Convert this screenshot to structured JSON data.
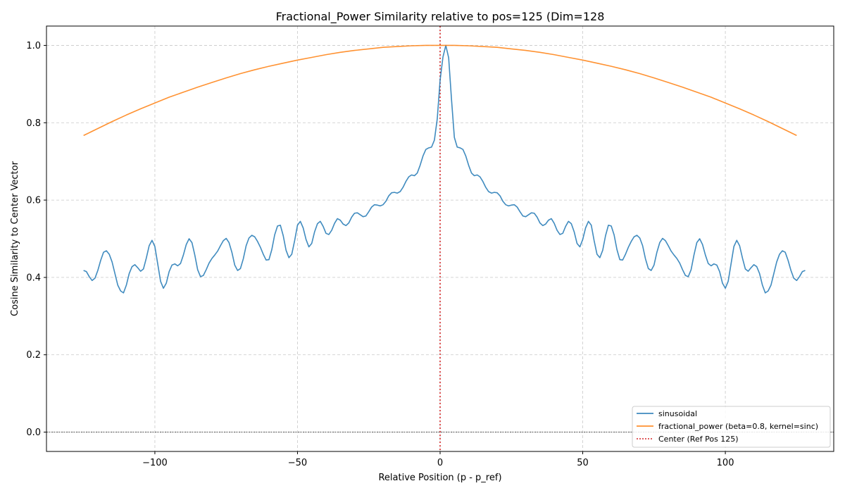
{
  "chart_data": {
    "type": "line",
    "title": "Fractional_Power Similarity relative to pos=125 (Dim=128",
    "xlabel": "Relative Position (p - p_ref)",
    "ylabel": "Cosine Similarity to Center Vector",
    "xlim": [
      -138,
      138
    ],
    "ylim": [
      -0.05,
      1.05
    ],
    "xticks": [
      -100,
      -50,
      0,
      50,
      100
    ],
    "xtick_labels": [
      "−100",
      "−50",
      "0",
      "50",
      "100"
    ],
    "yticks": [
      0.0,
      0.2,
      0.4,
      0.6,
      0.8,
      1.0
    ],
    "ytick_labels": [
      "0.0",
      "0.2",
      "0.4",
      "0.6",
      "0.8",
      "1.0"
    ],
    "grid": true,
    "legend_position": "bottom-right",
    "series": [
      {
        "name": "sinusoidal",
        "color": "#1f77b4",
        "points": [
          [
            -125,
            0.418
          ],
          [
            -124,
            0.415
          ],
          [
            -123,
            0.402
          ],
          [
            -122,
            0.392
          ],
          [
            -121,
            0.398
          ],
          [
            -120,
            0.418
          ],
          [
            -119,
            0.444
          ],
          [
            -118,
            0.465
          ],
          [
            -117,
            0.469
          ],
          [
            -116,
            0.46
          ],
          [
            -115,
            0.44
          ],
          [
            -114,
            0.41
          ],
          [
            -113,
            0.38
          ],
          [
            -112,
            0.365
          ],
          [
            -111,
            0.36
          ],
          [
            -110,
            0.38
          ],
          [
            -109,
            0.41
          ],
          [
            -108,
            0.428
          ],
          [
            -107,
            0.433
          ],
          [
            -106,
            0.425
          ],
          [
            -105,
            0.416
          ],
          [
            -104,
            0.422
          ],
          [
            -103,
            0.45
          ],
          [
            -102,
            0.482
          ],
          [
            -101,
            0.496
          ],
          [
            -100,
            0.48
          ],
          [
            -99,
            0.435
          ],
          [
            -98,
            0.39
          ],
          [
            -97,
            0.372
          ],
          [
            -96,
            0.385
          ],
          [
            -95,
            0.415
          ],
          [
            -94,
            0.432
          ],
          [
            -93,
            0.435
          ],
          [
            -92,
            0.43
          ],
          [
            -91,
            0.436
          ],
          [
            -90,
            0.458
          ],
          [
            -89,
            0.485
          ],
          [
            -88,
            0.5
          ],
          [
            -87,
            0.49
          ],
          [
            -86,
            0.458
          ],
          [
            -85,
            0.42
          ],
          [
            -84,
            0.402
          ],
          [
            -83,
            0.405
          ],
          [
            -82,
            0.42
          ],
          [
            -81,
            0.437
          ],
          [
            -80,
            0.449
          ],
          [
            -79,
            0.458
          ],
          [
            -78,
            0.468
          ],
          [
            -77,
            0.482
          ],
          [
            -76,
            0.495
          ],
          [
            -75,
            0.501
          ],
          [
            -74,
            0.49
          ],
          [
            -73,
            0.465
          ],
          [
            -72,
            0.432
          ],
          [
            -71,
            0.418
          ],
          [
            -70,
            0.423
          ],
          [
            -69,
            0.448
          ],
          [
            -68,
            0.482
          ],
          [
            -67,
            0.502
          ],
          [
            -66,
            0.509
          ],
          [
            -65,
            0.505
          ],
          [
            -64,
            0.493
          ],
          [
            -63,
            0.478
          ],
          [
            -62,
            0.46
          ],
          [
            -61,
            0.445
          ],
          [
            -60,
            0.446
          ],
          [
            -59,
            0.472
          ],
          [
            -58,
            0.51
          ],
          [
            -57,
            0.533
          ],
          [
            -56,
            0.535
          ],
          [
            -55,
            0.508
          ],
          [
            -54,
            0.47
          ],
          [
            -53,
            0.451
          ],
          [
            -52,
            0.46
          ],
          [
            -51,
            0.495
          ],
          [
            -50,
            0.535
          ],
          [
            -49,
            0.545
          ],
          [
            -48,
            0.528
          ],
          [
            -47,
            0.498
          ],
          [
            -46,
            0.479
          ],
          [
            -45,
            0.488
          ],
          [
            -44,
            0.518
          ],
          [
            -43,
            0.539
          ],
          [
            -42,
            0.545
          ],
          [
            -41,
            0.532
          ],
          [
            -40,
            0.514
          ],
          [
            -39,
            0.511
          ],
          [
            -38,
            0.522
          ],
          [
            -37,
            0.54
          ],
          [
            -36,
            0.552
          ],
          [
            -35,
            0.548
          ],
          [
            -34,
            0.538
          ],
          [
            -33,
            0.534
          ],
          [
            -32,
            0.541
          ],
          [
            -31,
            0.556
          ],
          [
            -30,
            0.566
          ],
          [
            -29,
            0.567
          ],
          [
            -28,
            0.562
          ],
          [
            -27,
            0.557
          ],
          [
            -26,
            0.559
          ],
          [
            -25,
            0.57
          ],
          [
            -24,
            0.582
          ],
          [
            -23,
            0.588
          ],
          [
            -22,
            0.587
          ],
          [
            -21,
            0.585
          ],
          [
            -20,
            0.588
          ],
          [
            -19,
            0.597
          ],
          [
            -18,
            0.611
          ],
          [
            -17,
            0.619
          ],
          [
            -16,
            0.62
          ],
          [
            -15,
            0.618
          ],
          [
            -14,
            0.622
          ],
          [
            -13,
            0.633
          ],
          [
            -12,
            0.648
          ],
          [
            -11,
            0.66
          ],
          [
            -10,
            0.665
          ],
          [
            -9,
            0.663
          ],
          [
            -8,
            0.67
          ],
          [
            -7,
            0.69
          ],
          [
            -6,
            0.714
          ],
          [
            -5,
            0.731
          ],
          [
            -4,
            0.735
          ],
          [
            -3,
            0.737
          ],
          [
            -2,
            0.755
          ],
          [
            -1,
            0.81
          ],
          [
            0,
            0.91
          ],
          [
            1,
            0.97
          ],
          [
            2,
            1.0
          ],
          [
            3,
            0.968
          ],
          [
            4,
            0.86
          ],
          [
            5,
            0.762
          ],
          [
            6,
            0.737
          ],
          [
            7,
            0.735
          ],
          [
            8,
            0.731
          ],
          [
            9,
            0.714
          ],
          [
            10,
            0.69
          ],
          [
            11,
            0.67
          ],
          [
            12,
            0.663
          ],
          [
            13,
            0.665
          ],
          [
            14,
            0.66
          ],
          [
            15,
            0.648
          ],
          [
            16,
            0.633
          ],
          [
            17,
            0.622
          ],
          [
            18,
            0.618
          ],
          [
            19,
            0.62
          ],
          [
            20,
            0.619
          ],
          [
            21,
            0.611
          ],
          [
            22,
            0.597
          ],
          [
            23,
            0.588
          ],
          [
            24,
            0.585
          ],
          [
            25,
            0.587
          ],
          [
            26,
            0.588
          ],
          [
            27,
            0.582
          ],
          [
            28,
            0.57
          ],
          [
            29,
            0.559
          ],
          [
            30,
            0.557
          ],
          [
            31,
            0.562
          ],
          [
            32,
            0.567
          ],
          [
            33,
            0.566
          ],
          [
            34,
            0.556
          ],
          [
            35,
            0.541
          ],
          [
            36,
            0.534
          ],
          [
            37,
            0.538
          ],
          [
            38,
            0.548
          ],
          [
            39,
            0.552
          ],
          [
            40,
            0.54
          ],
          [
            41,
            0.522
          ],
          [
            42,
            0.511
          ],
          [
            43,
            0.514
          ],
          [
            44,
            0.532
          ],
          [
            45,
            0.545
          ],
          [
            46,
            0.539
          ],
          [
            47,
            0.518
          ],
          [
            48,
            0.488
          ],
          [
            49,
            0.479
          ],
          [
            50,
            0.498
          ],
          [
            51,
            0.528
          ],
          [
            52,
            0.545
          ],
          [
            53,
            0.535
          ],
          [
            54,
            0.495
          ],
          [
            55,
            0.46
          ],
          [
            56,
            0.451
          ],
          [
            57,
            0.47
          ],
          [
            58,
            0.508
          ],
          [
            59,
            0.535
          ],
          [
            60,
            0.533
          ],
          [
            61,
            0.51
          ],
          [
            62,
            0.472
          ],
          [
            63,
            0.446
          ],
          [
            64,
            0.445
          ],
          [
            65,
            0.46
          ],
          [
            66,
            0.478
          ],
          [
            67,
            0.493
          ],
          [
            68,
            0.505
          ],
          [
            69,
            0.509
          ],
          [
            70,
            0.502
          ],
          [
            71,
            0.482
          ],
          [
            72,
            0.448
          ],
          [
            73,
            0.423
          ],
          [
            74,
            0.418
          ],
          [
            75,
            0.432
          ],
          [
            76,
            0.465
          ],
          [
            77,
            0.49
          ],
          [
            78,
            0.501
          ],
          [
            79,
            0.495
          ],
          [
            80,
            0.482
          ],
          [
            81,
            0.468
          ],
          [
            82,
            0.458
          ],
          [
            83,
            0.449
          ],
          [
            84,
            0.437
          ],
          [
            85,
            0.42
          ],
          [
            86,
            0.405
          ],
          [
            87,
            0.402
          ],
          [
            88,
            0.42
          ],
          [
            89,
            0.458
          ],
          [
            90,
            0.49
          ],
          [
            91,
            0.5
          ],
          [
            92,
            0.485
          ],
          [
            93,
            0.458
          ],
          [
            94,
            0.436
          ],
          [
            95,
            0.43
          ],
          [
            96,
            0.435
          ],
          [
            97,
            0.432
          ],
          [
            98,
            0.415
          ],
          [
            99,
            0.385
          ],
          [
            100,
            0.372
          ],
          [
            101,
            0.39
          ],
          [
            102,
            0.435
          ],
          [
            103,
            0.48
          ],
          [
            104,
            0.496
          ],
          [
            105,
            0.482
          ],
          [
            106,
            0.45
          ],
          [
            107,
            0.422
          ],
          [
            108,
            0.416
          ],
          [
            109,
            0.425
          ],
          [
            110,
            0.433
          ],
          [
            111,
            0.428
          ],
          [
            112,
            0.41
          ],
          [
            113,
            0.38
          ],
          [
            114,
            0.36
          ],
          [
            115,
            0.365
          ],
          [
            116,
            0.38
          ],
          [
            117,
            0.41
          ],
          [
            118,
            0.44
          ],
          [
            119,
            0.46
          ],
          [
            120,
            0.469
          ],
          [
            121,
            0.465
          ],
          [
            122,
            0.444
          ],
          [
            123,
            0.418
          ],
          [
            124,
            0.398
          ],
          [
            125,
            0.392
          ],
          [
            126,
            0.402
          ],
          [
            127,
            0.415
          ],
          [
            128,
            0.418
          ]
        ]
      },
      {
        "name": "fractional_power (beta=0.8, kernel=sinc)",
        "color": "#ff7f0e",
        "points": [
          [
            -125,
            0.767
          ],
          [
            -120,
            0.785
          ],
          [
            -115,
            0.803
          ],
          [
            -110,
            0.82
          ],
          [
            -105,
            0.836
          ],
          [
            -100,
            0.851
          ],
          [
            -95,
            0.866
          ],
          [
            -90,
            0.879
          ],
          [
            -85,
            0.892
          ],
          [
            -80,
            0.904
          ],
          [
            -75,
            0.916
          ],
          [
            -70,
            0.927
          ],
          [
            -65,
            0.937
          ],
          [
            -60,
            0.946
          ],
          [
            -55,
            0.954
          ],
          [
            -50,
            0.962
          ],
          [
            -45,
            0.969
          ],
          [
            -40,
            0.976
          ],
          [
            -35,
            0.982
          ],
          [
            -30,
            0.987
          ],
          [
            -25,
            0.991
          ],
          [
            -20,
            0.995
          ],
          [
            -15,
            0.997
          ],
          [
            -10,
            0.999
          ],
          [
            -5,
            1.0
          ],
          [
            0,
            1.0
          ],
          [
            5,
            1.0
          ],
          [
            10,
            0.999
          ],
          [
            15,
            0.997
          ],
          [
            20,
            0.995
          ],
          [
            25,
            0.991
          ],
          [
            30,
            0.987
          ],
          [
            35,
            0.982
          ],
          [
            40,
            0.976
          ],
          [
            45,
            0.969
          ],
          [
            50,
            0.962
          ],
          [
            55,
            0.954
          ],
          [
            60,
            0.946
          ],
          [
            65,
            0.937
          ],
          [
            70,
            0.927
          ],
          [
            75,
            0.916
          ],
          [
            80,
            0.904
          ],
          [
            85,
            0.892
          ],
          [
            90,
            0.879
          ],
          [
            95,
            0.866
          ],
          [
            100,
            0.851
          ],
          [
            105,
            0.836
          ],
          [
            110,
            0.82
          ],
          [
            115,
            0.803
          ],
          [
            120,
            0.785
          ],
          [
            125,
            0.767
          ]
        ]
      }
    ],
    "reference_lines": [
      {
        "name": "Center (Ref Pos 125)",
        "orientation": "vertical",
        "x": 0,
        "color": "#d62728",
        "style": "dotted"
      },
      {
        "orientation": "horizontal",
        "y": 0,
        "color": "#000000",
        "style": "dashed"
      }
    ],
    "legend": {
      "entries": [
        {
          "label": "sinusoidal",
          "color": "#1f77b4",
          "style": "solid"
        },
        {
          "label": "fractional_power (beta=0.8, kernel=sinc)",
          "color": "#ff7f0e",
          "style": "solid"
        },
        {
          "label": "Center (Ref Pos 125)",
          "color": "#d62728",
          "style": "dotted"
        }
      ]
    }
  }
}
